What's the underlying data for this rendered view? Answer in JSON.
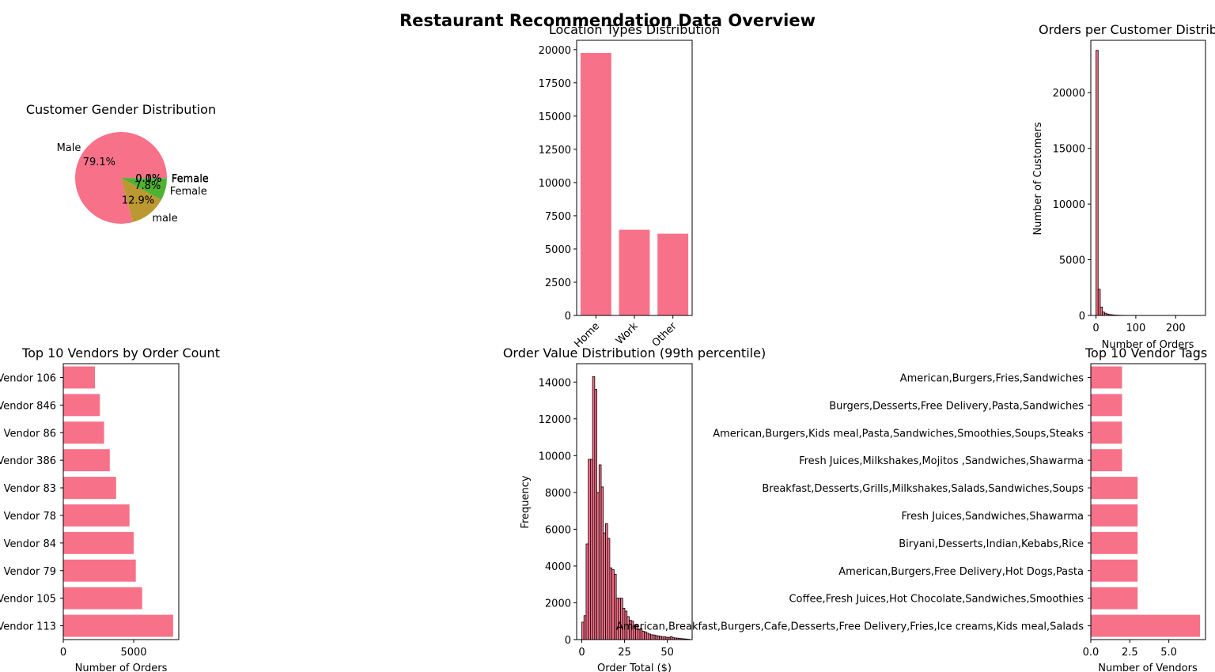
{
  "figure": {
    "title": "Restaurant Recommendation Data Overview"
  },
  "colors": {
    "bar": "#f77189",
    "edge": "#000000",
    "pie": [
      "#f77189",
      "#bb9832",
      "#50b131",
      "#36ada4",
      "#3ba3ec",
      "#e866f4"
    ]
  },
  "chart_data": [
    {
      "type": "pie",
      "title": "Customer Gender Distribution",
      "labels": [
        "Male",
        "male",
        "Female",
        "Female",
        "Female",
        "Female"
      ],
      "autopct": [
        "79.1%",
        "12.9%",
        "7.8%",
        "0.1%",
        "0.0%",
        "0.0%"
      ],
      "values": [
        79.1,
        12.9,
        7.8,
        0.1,
        0.04,
        0.02
      ]
    },
    {
      "type": "bar",
      "title": "Location Types Distribution",
      "categories": [
        "Home",
        "Work",
        "Other"
      ],
      "values": [
        19750,
        6450,
        6150
      ],
      "ylim": [
        0,
        20700
      ],
      "yticks": [
        0,
        2500,
        5000,
        7500,
        10000,
        12500,
        15000,
        17500,
        20000
      ],
      "xlabel": "",
      "ylabel": ""
    },
    {
      "type": "bar",
      "subtype": "histogram",
      "title": "Orders per Customer Distribution",
      "xlabel": "Number of Orders",
      "ylabel": "Number of Customers",
      "xlim": [
        -13,
        275
      ],
      "ylim": [
        0,
        24700
      ],
      "xticks": [
        0,
        100,
        200
      ],
      "yticks": [
        0,
        5000,
        10000,
        15000,
        20000
      ],
      "bin_start": 0,
      "bin_width": 5.4,
      "values": [
        23800,
        2350,
        750,
        300,
        200,
        120,
        80,
        60,
        40,
        30,
        20,
        15,
        10,
        8,
        6,
        5,
        4,
        3,
        3,
        2,
        2,
        2,
        1,
        1,
        1,
        1,
        1,
        1,
        1,
        1,
        1,
        1,
        0,
        0,
        0,
        0,
        0,
        0,
        0,
        0,
        0,
        0,
        0,
        0,
        0,
        0,
        0,
        1,
        0,
        1
      ]
    },
    {
      "type": "bar",
      "orientation": "horizontal",
      "title": "Top 10 Vendors by Order Count",
      "xlabel": "Number of Orders",
      "ylabel": "",
      "categories": [
        "Vendor 113",
        "Vendor 105",
        "Vendor 79",
        "Vendor 84",
        "Vendor 78",
        "Vendor 83",
        "Vendor 386",
        "Vendor 86",
        "Vendor 846",
        "Vendor 106"
      ],
      "values": [
        7800,
        5600,
        5150,
        5000,
        4700,
        3750,
        3300,
        2900,
        2600,
        2250
      ],
      "xlim": [
        0,
        8200
      ],
      "xticks": [
        0,
        5000
      ]
    },
    {
      "type": "bar",
      "subtype": "histogram",
      "title": "Order Value Distribution (99th percentile)",
      "xlabel": "Order Total ($)",
      "ylabel": "Frequency",
      "xlim": [
        -3,
        64.5
      ],
      "ylim": [
        0,
        15000
      ],
      "xticks": [
        0,
        25,
        50
      ],
      "yticks": [
        0,
        2000,
        4000,
        6000,
        8000,
        10000,
        12000,
        14000
      ],
      "bin_start": 0,
      "bin_width": 1.26,
      "values": [
        950,
        1300,
        5200,
        9800,
        9800,
        14300,
        13600,
        8000,
        9500,
        8300,
        5800,
        6300,
        5500,
        3900,
        3800,
        3550,
        2250,
        2250,
        2250,
        1700,
        1550,
        1250,
        1050,
        1000,
        800,
        800,
        550,
        600,
        450,
        420,
        350,
        300,
        260,
        250,
        220,
        200,
        180,
        150,
        150,
        130,
        120,
        160,
        100,
        90,
        80,
        60,
        50,
        40,
        30,
        20
      ]
    },
    {
      "type": "bar",
      "orientation": "horizontal",
      "title": "Top 10 Vendor Tags",
      "xlabel": "Number of Vendors",
      "ylabel": "",
      "categories": [
        "American,Breakfast,Burgers,Cafe,Desserts,Free Delivery,Fries,Ice creams,Kids meal,Salads",
        "Coffee,Fresh Juices,Hot Chocolate,Sandwiches,Smoothies",
        "American,Burgers,Free Delivery,Hot Dogs,Pasta",
        "Biryani,Desserts,Indian,Kebabs,Rice",
        "Fresh Juices,Sandwiches,Shawarma",
        "Breakfast,Desserts,Grills,Milkshakes,Salads,Sandwiches,Soups",
        "Fresh Juices,Milkshakes,Mojitos ,Sandwiches,Shawarma",
        "American,Burgers,Kids meal,Pasta,Sandwiches,Smoothies,Soups,Steaks",
        "Burgers,Desserts,Free Delivery,Pasta,Sandwiches",
        "American,Burgers,Fries,Sandwiches"
      ],
      "values": [
        7,
        3,
        3,
        3,
        3,
        3,
        2,
        2,
        2,
        2
      ],
      "xlim": [
        0,
        7.35
      ],
      "xticks": [
        0.0,
        2.5,
        5.0
      ],
      "xtick_labels": [
        "0.0",
        "2.5",
        "5.0"
      ]
    }
  ]
}
